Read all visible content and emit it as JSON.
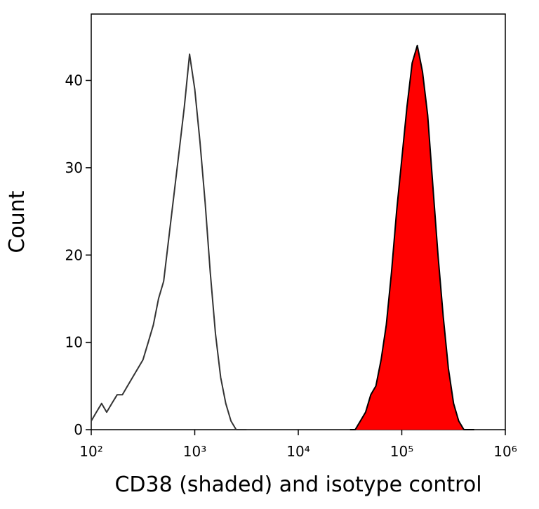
{
  "chart_data": {
    "type": "line",
    "x_label": "CD38 (shaded) and isotype control",
    "y_label": "Count",
    "xscale": "log",
    "xlim": [
      100,
      1000000
    ],
    "xticks": [
      {
        "value": 100,
        "label": "10²"
      },
      {
        "value": 1000,
        "label": "10³"
      },
      {
        "value": 10000,
        "label": "10⁴"
      },
      {
        "value": 100000,
        "label": "10⁵"
      },
      {
        "value": 1000000,
        "label": "10⁶"
      }
    ],
    "ylim": [
      0,
      47.6
    ],
    "yticks": [
      0,
      10,
      20,
      30,
      40
    ],
    "grid": false,
    "series": [
      {
        "color": "#333333",
        "fill": false,
        "x": [
          100,
          112,
          126,
          141,
          158,
          178,
          200,
          224,
          251,
          282,
          316,
          355,
          398,
          447,
          501,
          562,
          631,
          708,
          794,
          891,
          1000,
          1122,
          1259,
          1413,
          1585,
          1778,
          1995,
          2239,
          2512,
          2818,
          3162
        ],
        "values": [
          1,
          2,
          3,
          2,
          3,
          4,
          4,
          5,
          6,
          7,
          8,
          10,
          12,
          15,
          17,
          22,
          27,
          32,
          37,
          43,
          39,
          33,
          26,
          18,
          11,
          6,
          3,
          1,
          0,
          0,
          0
        ]
      },
      {
        "color": "#ff0000",
        "edge_color": "#000000",
        "fill": true,
        "x": [
          31623,
          35481,
          39811,
          44668,
          50119,
          56234,
          63096,
          70795,
          79433,
          89125,
          100000,
          112202,
          125893,
          141254,
          158489,
          177828,
          199526,
          223872,
          251189,
          281838,
          316228,
          354813,
          398107,
          446684,
          501187
        ],
        "values": [
          0,
          0,
          1,
          2,
          4,
          5,
          8,
          12,
          18,
          25,
          31,
          37,
          42,
          44,
          41,
          36,
          28,
          20,
          13,
          7,
          3,
          1,
          0,
          0,
          0
        ]
      }
    ]
  }
}
